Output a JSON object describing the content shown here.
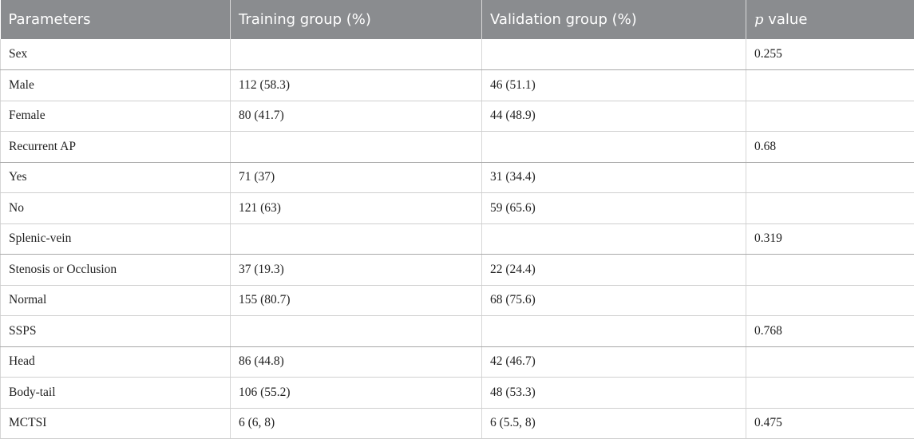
{
  "table": {
    "headers": {
      "parameters": "Parameters",
      "training": "Training group (%)",
      "validation": "Validation group (%)",
      "p_italic": "p",
      "p_rest": " value"
    },
    "rows": [
      {
        "param": "Sex",
        "training": "",
        "validation": "",
        "p": "0.255"
      },
      {
        "param": "Male",
        "training": "112 (58.3)",
        "validation": "46 (51.1)",
        "p": ""
      },
      {
        "param": "Female",
        "training": "80 (41.7)",
        "validation": "44 (48.9)",
        "p": ""
      },
      {
        "param": "Recurrent AP",
        "training": "",
        "validation": "",
        "p": "0.68"
      },
      {
        "param": "Yes",
        "training": "71 (37)",
        "validation": "31 (34.4)",
        "p": ""
      },
      {
        "param": "No",
        "training": "121 (63)",
        "validation": "59 (65.6)",
        "p": ""
      },
      {
        "param": "Splenic-vein",
        "training": "",
        "validation": "",
        "p": "0.319"
      },
      {
        "param": "Stenosis or Occlusion",
        "training": "37 (19.3)",
        "validation": "22 (24.4)",
        "p": ""
      },
      {
        "param": "Normal",
        "training": "155 (80.7)",
        "validation": "68 (75.6)",
        "p": ""
      },
      {
        "param": "SSPS",
        "training": "",
        "validation": "",
        "p": "0.768"
      },
      {
        "param": "Head",
        "training": "86 (44.8)",
        "validation": "42 (46.7)",
        "p": ""
      },
      {
        "param": "Body-tail",
        "training": "106 (55.2)",
        "validation": "48 (53.3)",
        "p": ""
      },
      {
        "param": "MCTSI",
        "training": "6 (6, 8)",
        "validation": "6 (5.5, 8)",
        "p": "0.475"
      }
    ]
  },
  "colors": {
    "header_bg": "#8a8c8f",
    "header_text": "#ffffff",
    "body_text": "#222222",
    "grid": "#d6d6d6"
  }
}
